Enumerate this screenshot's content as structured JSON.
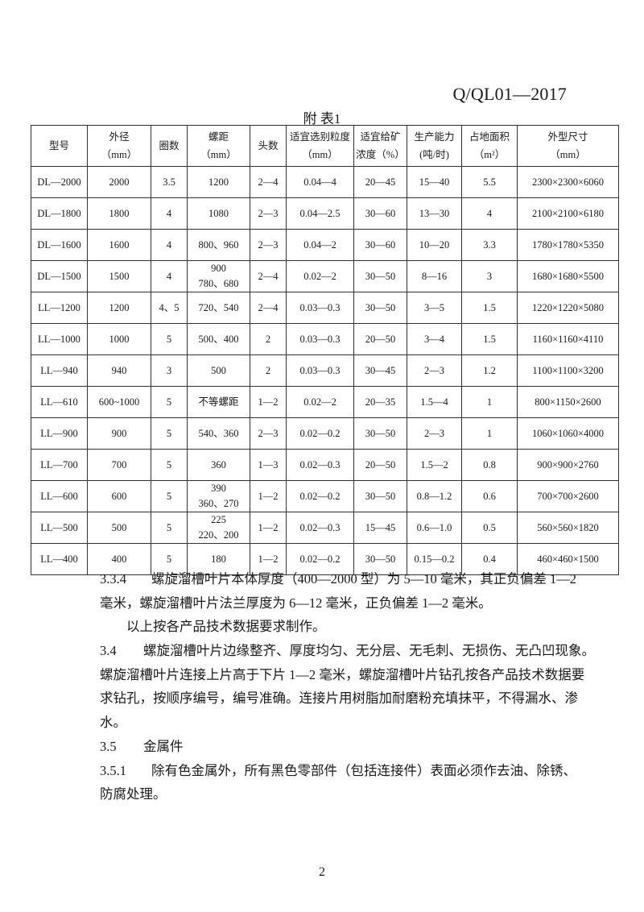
{
  "header": {
    "standard_code": "Q/QL01—2017"
  },
  "table": {
    "caption": "附 表1",
    "columns": [
      [
        "型号"
      ],
      [
        "外径",
        "（mm）"
      ],
      [
        "圈数"
      ],
      [
        "螺距",
        "（mm）"
      ],
      [
        "头数"
      ],
      [
        "适宜选别粒度",
        "（mm）"
      ],
      [
        "适宜给矿",
        "浓度（%）"
      ],
      [
        "生产能力",
        "(吨/时)"
      ],
      [
        "占地面积",
        "（m²）"
      ],
      [
        "外型尺寸",
        "（mm）"
      ]
    ],
    "rows": [
      [
        "DL—2000",
        "2000",
        "3.5",
        "1200",
        "2—4",
        "0.04—4",
        "20—45",
        "15—40",
        "5.5",
        "2300×2300×6060"
      ],
      [
        "DL—1800",
        "1800",
        "4",
        "1080",
        "2—3",
        "0.04—2.5",
        "30—60",
        "13—30",
        "4",
        "2100×2100×6180"
      ],
      [
        "DL—1600",
        "1600",
        "4",
        "800、960",
        "2—3",
        "0.04—2",
        "30—60",
        "10—20",
        "3.3",
        "1780×1780×5350"
      ],
      [
        "DL—1500",
        "1500",
        "4",
        "900\n780、680",
        "2—4",
        "0.02—2",
        "30—50",
        "8—16",
        "3",
        "1680×1680×5500"
      ],
      [
        "LL—1200",
        "1200",
        "4、5",
        "720、540",
        "2—4",
        "0.03—0.3",
        "30—50",
        "3—5",
        "1.5",
        "1220×1220×5080"
      ],
      [
        "LL—1000",
        "1000",
        "5",
        "500、400",
        "2",
        "0.03—0.3",
        "20—50",
        "3—4",
        "1.5",
        "1160×1160×4110"
      ],
      [
        "LL—940",
        "940",
        "3",
        "500",
        "2",
        "0.03—0.3",
        "30—45",
        "2—3",
        "1.2",
        "1100×1100×3200"
      ],
      [
        "LL—610",
        "600~1000",
        "5",
        "不等螺距",
        "1—2",
        "0.02—2",
        "20—35",
        "1.5—4",
        "1",
        "800×1150×2600"
      ],
      [
        "LL—900",
        "900",
        "5",
        "540、360",
        "2—3",
        "0.02—0.2",
        "30—50",
        "2—3",
        "1",
        "1060×1060×4000"
      ],
      [
        "LL—700",
        "700",
        "5",
        "360",
        "1—3",
        "0.02—0.3",
        "20—50",
        "1.5—2",
        "0.8",
        "900×900×2760"
      ],
      [
        "LL—600",
        "600",
        "5",
        "390\n360、270",
        "1—2",
        "0.02—0.2",
        "30—50",
        "0.8—1.2",
        "0.6",
        "700×700×2600"
      ],
      [
        "LL—500",
        "500",
        "5",
        "225\n220、200",
        "1—2",
        "0.02—0.3",
        "15—45",
        "0.6—1.0",
        "0.5",
        "560×560×1820"
      ],
      [
        "LL—400",
        "400",
        "5",
        "180",
        "1—2",
        "0.02—0.2",
        "30—50",
        "0.15—0.2",
        "0.4",
        "460×460×1500"
      ]
    ]
  },
  "body": {
    "lines": [
      {
        "num": "3.3.4",
        "text": "螺旋溜槽叶片本体厚度（400—2000 型）为 5—10 毫米，其正负偏差 1—2"
      },
      {
        "num": "",
        "text": "毫米，螺旋溜槽叶片法兰厚度为 6—12 毫米，正负偏差 1—2 毫米。"
      },
      {
        "num": "",
        "text": "以上按各产品技术数据要求制作。",
        "indent": true
      },
      {
        "num": "3.4",
        "text": "螺旋溜槽叶片边缘整齐、厚度均匀、无分层、无毛刺、无损伤、无凸凹现象。"
      },
      {
        "num": "",
        "text": "螺旋溜槽叶片连接上片高于下片 1—2 毫米，螺旋溜槽叶片钻孔按各产品技术数据要"
      },
      {
        "num": "",
        "text": "求钻孔，按顺序编号，编号准确。连接片用树脂加耐磨粉充填抹平，不得漏水、渗"
      },
      {
        "num": "",
        "text": "水。"
      },
      {
        "num": "3.5",
        "text": "金属件"
      },
      {
        "num": "3.5.1",
        "text": "除有色金属外，所有黑色零部件（包括连接件）表面必须作去油、除锈、"
      },
      {
        "num": "",
        "text": "防腐处理。"
      }
    ]
  },
  "footer": {
    "page_number": "2"
  }
}
